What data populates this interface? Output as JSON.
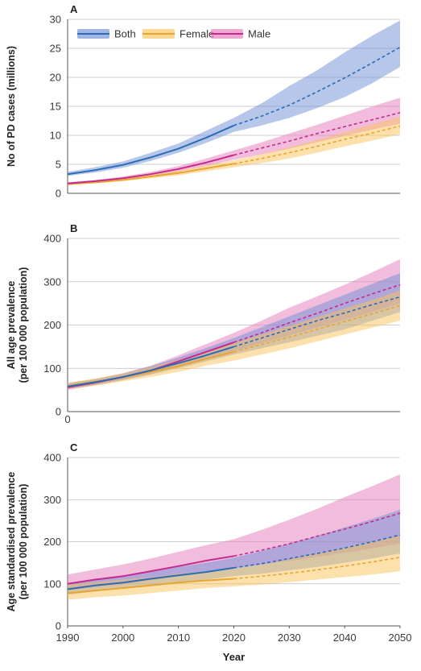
{
  "chart_data": [
    {
      "panel": "A",
      "type": "line",
      "ylabel": "No of PD cases (millions)",
      "ylim": [
        0,
        30
      ],
      "yticks": [
        "0",
        "5",
        "10",
        "15",
        "20",
        "25",
        "30"
      ],
      "xlim": [
        1990,
        2050
      ],
      "legend": {
        "placement": "top-left",
        "entries": [
          "Both",
          "Female",
          "Male"
        ]
      },
      "series": [
        {
          "name": "Both",
          "color": "#2a6db5",
          "band_color": "#6f8fd6",
          "observed": {
            "x": [
              1990,
              1995,
              2000,
              2005,
              2010,
              2015,
              2020
            ],
            "y": [
              3.3,
              4.0,
              4.9,
              6.2,
              7.7,
              9.6,
              11.7
            ],
            "lower": [
              3.0,
              3.6,
              4.4,
              5.6,
              7.0,
              8.7,
              10.6
            ],
            "upper": [
              3.7,
              4.5,
              5.5,
              7.0,
              8.6,
              10.8,
              13.0
            ]
          },
          "projected": {
            "x": [
              2020,
              2025,
              2030,
              2035,
              2040,
              2045,
              2050
            ],
            "y": [
              11.7,
              13.3,
              15.2,
              17.5,
              19.9,
              22.5,
              25.2
            ],
            "lower": [
              10.6,
              11.7,
              13.0,
              14.7,
              16.6,
              19.0,
              21.8
            ],
            "upper": [
              13.0,
              15.5,
              18.5,
              21.2,
              24.3,
              27.2,
              29.8
            ]
          }
        },
        {
          "name": "Female",
          "color": "#e8a531",
          "band_color": "#f9c45c",
          "observed": {
            "x": [
              1990,
              1995,
              2000,
              2005,
              2010,
              2015,
              2020
            ],
            "y": [
              1.6,
              1.9,
              2.3,
              2.9,
              3.5,
              4.3,
              5.1
            ],
            "lower": [
              1.4,
              1.7,
              2.1,
              2.6,
              3.1,
              3.8,
              4.5
            ],
            "upper": [
              1.8,
              2.1,
              2.6,
              3.2,
              3.9,
              4.8,
              5.7
            ]
          },
          "projected": {
            "x": [
              2020,
              2025,
              2030,
              2035,
              2040,
              2045,
              2050
            ],
            "y": [
              5.1,
              6.0,
              7.0,
              8.1,
              9.3,
              10.4,
              11.6
            ],
            "lower": [
              4.5,
              5.2,
              6.0,
              7.0,
              8.1,
              9.1,
              10.2
            ],
            "upper": [
              5.7,
              6.7,
              7.9,
              9.2,
              10.5,
              11.9,
              13.2
            ]
          }
        },
        {
          "name": "Male",
          "color": "#c62a8c",
          "band_color": "#e57bba",
          "observed": {
            "x": [
              1990,
              1995,
              2000,
              2005,
              2010,
              2015,
              2020
            ],
            "y": [
              1.7,
              2.1,
              2.6,
              3.3,
              4.2,
              5.3,
              6.6
            ],
            "lower": [
              1.5,
              1.9,
              2.3,
              2.9,
              3.7,
              4.7,
              5.8
            ],
            "upper": [
              1.9,
              2.3,
              2.9,
              3.7,
              4.7,
              6.0,
              7.4
            ]
          },
          "projected": {
            "x": [
              2020,
              2025,
              2030,
              2035,
              2040,
              2045,
              2050
            ],
            "y": [
              6.6,
              7.8,
              9.0,
              10.3,
              11.5,
              12.7,
              13.9
            ],
            "lower": [
              5.8,
              6.7,
              7.7,
              8.8,
              9.9,
              11.0,
              12.0
            ],
            "upper": [
              7.4,
              8.8,
              10.3,
              11.8,
              13.4,
              15.0,
              16.5
            ]
          }
        }
      ]
    },
    {
      "panel": "B",
      "type": "line",
      "ylabel": "All age prevalence (per 100 000 population)",
      "ylim": [
        0,
        400
      ],
      "yticks": [
        "0",
        "100",
        "200",
        "300",
        "400"
      ],
      "extra_label": "0",
      "xlim": [
        1990,
        2050
      ],
      "series": [
        {
          "name": "Both",
          "color": "#2a6db5",
          "band_color": "#6f8fd6",
          "observed": {
            "x": [
              1990,
              1995,
              2000,
              2005,
              2010,
              2015,
              2020
            ],
            "y": [
              58,
              68,
              80,
              95,
              112,
              130,
              150
            ],
            "lower": [
              52,
              62,
              73,
              86,
              100,
              116,
              132
            ],
            "upper": [
              66,
              75,
              88,
              105,
              125,
              147,
              170
            ]
          },
          "projected": {
            "x": [
              2020,
              2025,
              2030,
              2035,
              2040,
              2045,
              2050
            ],
            "y": [
              150,
              170,
              190,
              210,
              228,
              247,
              265
            ],
            "lower": [
              132,
              146,
              160,
              175,
              190,
              210,
              230
            ],
            "upper": [
              170,
              195,
              220,
              245,
              270,
              295,
              320
            ]
          }
        },
        {
          "name": "Female",
          "color": "#e8a531",
          "band_color": "#f9c45c",
          "observed": {
            "x": [
              1990,
              1995,
              2000,
              2005,
              2010,
              2015,
              2020
            ],
            "y": [
              59,
              69,
              79,
              92,
              105,
              122,
              138
            ],
            "lower": [
              52,
              60,
              70,
              80,
              92,
              106,
              118
            ],
            "upper": [
              67,
              77,
              88,
              103,
              119,
              138,
              158
            ]
          },
          "projected": {
            "x": [
              2020,
              2025,
              2030,
              2035,
              2040,
              2045,
              2050
            ],
            "y": [
              138,
              155,
              172,
              190,
              208,
              226,
              245
            ],
            "lower": [
              118,
              132,
              146,
              162,
              178,
              194,
              210
            ],
            "upper": [
              158,
              178,
              198,
              218,
              238,
              258,
              280
            ]
          }
        },
        {
          "name": "Male",
          "color": "#c62a8c",
          "band_color": "#e57bba",
          "observed": {
            "x": [
              1990,
              1995,
              2000,
              2005,
              2010,
              2015,
              2020
            ],
            "y": [
              56,
              67,
              80,
              95,
              116,
              138,
              160
            ],
            "lower": [
              50,
              61,
              73,
              86,
              104,
              124,
              140
            ],
            "upper": [
              64,
              75,
              89,
              106,
              130,
              156,
              182
            ]
          },
          "projected": {
            "x": [
              2020,
              2025,
              2030,
              2035,
              2040,
              2045,
              2050
            ],
            "y": [
              160,
              182,
              205,
              227,
              250,
              272,
              293
            ],
            "lower": [
              140,
              158,
              176,
              194,
              212,
              230,
              250
            ],
            "upper": [
              182,
              210,
              240,
              266,
              293,
              322,
              352
            ]
          }
        }
      ]
    },
    {
      "panel": "C",
      "type": "line",
      "ylabel": "Age standardised prevalence (per 100 000 population)",
      "xlabel": "Year",
      "ylim": [
        0,
        400
      ],
      "yticks": [
        "0",
        "100",
        "200",
        "300",
        "400"
      ],
      "xlim": [
        1990,
        2050
      ],
      "xticks": [
        "1990",
        "2000",
        "2010",
        "2020",
        "2030",
        "2040",
        "2050"
      ],
      "series": [
        {
          "name": "Both",
          "color": "#2a6db5",
          "band_color": "#6f8fd6",
          "observed": {
            "x": [
              1990,
              1995,
              2000,
              2005,
              2010,
              2015,
              2020
            ],
            "y": [
              87,
              96,
              103,
              112,
              120,
              128,
              138
            ],
            "lower": [
              74,
              82,
              88,
              96,
              103,
              110,
              118
            ],
            "upper": [
              102,
              112,
              120,
              130,
              140,
              150,
              162
            ]
          },
          "projected": {
            "x": [
              2020,
              2025,
              2030,
              2035,
              2040,
              2045,
              2050
            ],
            "y": [
              138,
              148,
              160,
              172,
              185,
              200,
              216
            ],
            "lower": [
              118,
              124,
              132,
              140,
              150,
              160,
              172
            ],
            "upper": [
              162,
              178,
              196,
              214,
              234,
              254,
              276
            ]
          }
        },
        {
          "name": "Female",
          "color": "#e8a531",
          "band_color": "#f9c45c",
          "observed": {
            "x": [
              1990,
              1995,
              2000,
              2005,
              2010,
              2015,
              2020
            ],
            "y": [
              78,
              84,
              90,
              96,
              103,
              108,
              112
            ],
            "lower": [
              62,
              68,
              72,
              78,
              84,
              90,
              94
            ],
            "upper": [
              98,
              104,
              110,
              116,
              124,
              130,
              136
            ]
          },
          "projected": {
            "x": [
              2020,
              2025,
              2030,
              2035,
              2040,
              2045,
              2050
            ],
            "y": [
              112,
              118,
              125,
              133,
              142,
              152,
              163
            ],
            "lower": [
              94,
              98,
              104,
              110,
              116,
              122,
              130
            ],
            "upper": [
              136,
              146,
              158,
              172,
              186,
              200,
              214
            ]
          }
        },
        {
          "name": "Male",
          "color": "#c62a8c",
          "band_color": "#e57bba",
          "observed": {
            "x": [
              1990,
              1995,
              2000,
              2005,
              2010,
              2015,
              2020
            ],
            "y": [
              100,
              110,
              118,
              130,
              142,
              155,
              166
            ],
            "lower": [
              84,
              92,
              98,
              108,
              118,
              128,
              138
            ],
            "upper": [
              122,
              134,
              146,
              160,
              176,
              192,
              206
            ]
          },
          "projected": {
            "x": [
              2020,
              2025,
              2030,
              2035,
              2040,
              2045,
              2050
            ],
            "y": [
              166,
              180,
              195,
              213,
              230,
              248,
              268
            ],
            "lower": [
              138,
              146,
              154,
              164,
              174,
              184,
              196
            ],
            "upper": [
              206,
              228,
              252,
              278,
              306,
              332,
              360
            ]
          }
        }
      ]
    }
  ]
}
